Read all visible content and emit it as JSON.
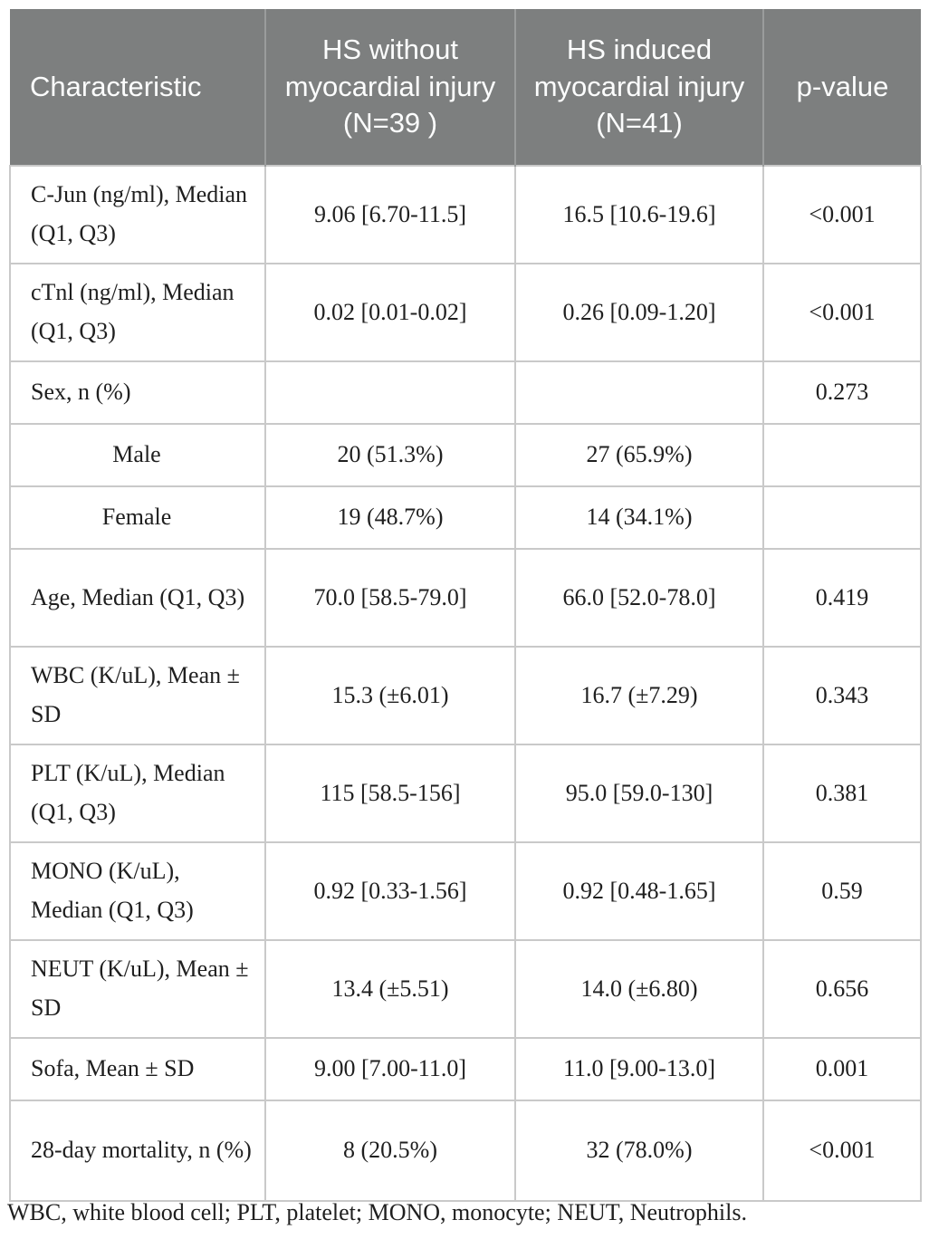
{
  "colors": {
    "header_bg": "#7d7f7f",
    "header_text": "#fcfdfd",
    "grid_border": "#c9c9c9",
    "body_text": "#1f1f1f"
  },
  "table": {
    "headers": [
      "Characteristic",
      "HS without myocardial injury (N=39 )",
      "HS induced myocardial injury (N=41)",
      "p-value"
    ],
    "rows": [
      {
        "label": "C-Jun (ng/ml), Median (Q1, Q3)",
        "group1": "9.06 [6.70-11.5]",
        "group2": "16.5 [10.6-19.6]",
        "p": "<0.001"
      },
      {
        "label": "cTnl (ng/ml), Median (Q1, Q3)",
        "group1": "0.02 [0.01-0.02]",
        "group2": "0.26 [0.09-1.20]",
        "p": "<0.001"
      },
      {
        "label": "Sex, n (%)",
        "group1": "",
        "group2": "",
        "p": "0.273"
      },
      {
        "label": "Male",
        "group1": "20 (51.3%)",
        "group2": "27 (65.9%)",
        "p": ""
      },
      {
        "label": "Female",
        "group1": "19 (48.7%)",
        "group2": "14 (34.1%)",
        "p": ""
      },
      {
        "label": "Age, Median (Q1, Q3)",
        "group1": "70.0 [58.5-79.0]",
        "group2": "66.0 [52.0-78.0]",
        "p": "0.419"
      },
      {
        "label": "WBC (K/uL), Mean ± SD",
        "group1": "15.3 (±6.01)",
        "group2": "16.7 (±7.29)",
        "p": "0.343"
      },
      {
        "label": "PLT (K/uL), Median (Q1, Q3)",
        "group1": "115 [58.5-156]",
        "group2": "95.0 [59.0-130]",
        "p": "0.381"
      },
      {
        "label": "MONO (K/uL), Median (Q1, Q3)",
        "group1": "0.92 [0.33-1.56]",
        "group2": "0.92 [0.48-1.65]",
        "p": "0.59"
      },
      {
        "label": "NEUT (K/uL), Mean ± SD",
        "group1": "13.4 (±5.51)",
        "group2": "14.0 (±6.80)",
        "p": "0.656"
      },
      {
        "label": "Sofa, Mean ± SD",
        "group1": "9.00 [7.00-11.0]",
        "group2": "11.0 [9.00-13.0]",
        "p": "0.001"
      },
      {
        "label": "28-day mortality, n (%)",
        "group1": "8 (20.5%)",
        "group2": "32 (78.0%)",
        "p": "<0.001"
      }
    ]
  },
  "footnote": "WBC, white blood cell; PLT, platelet; MONO, monocyte; NEUT, Neutrophils."
}
